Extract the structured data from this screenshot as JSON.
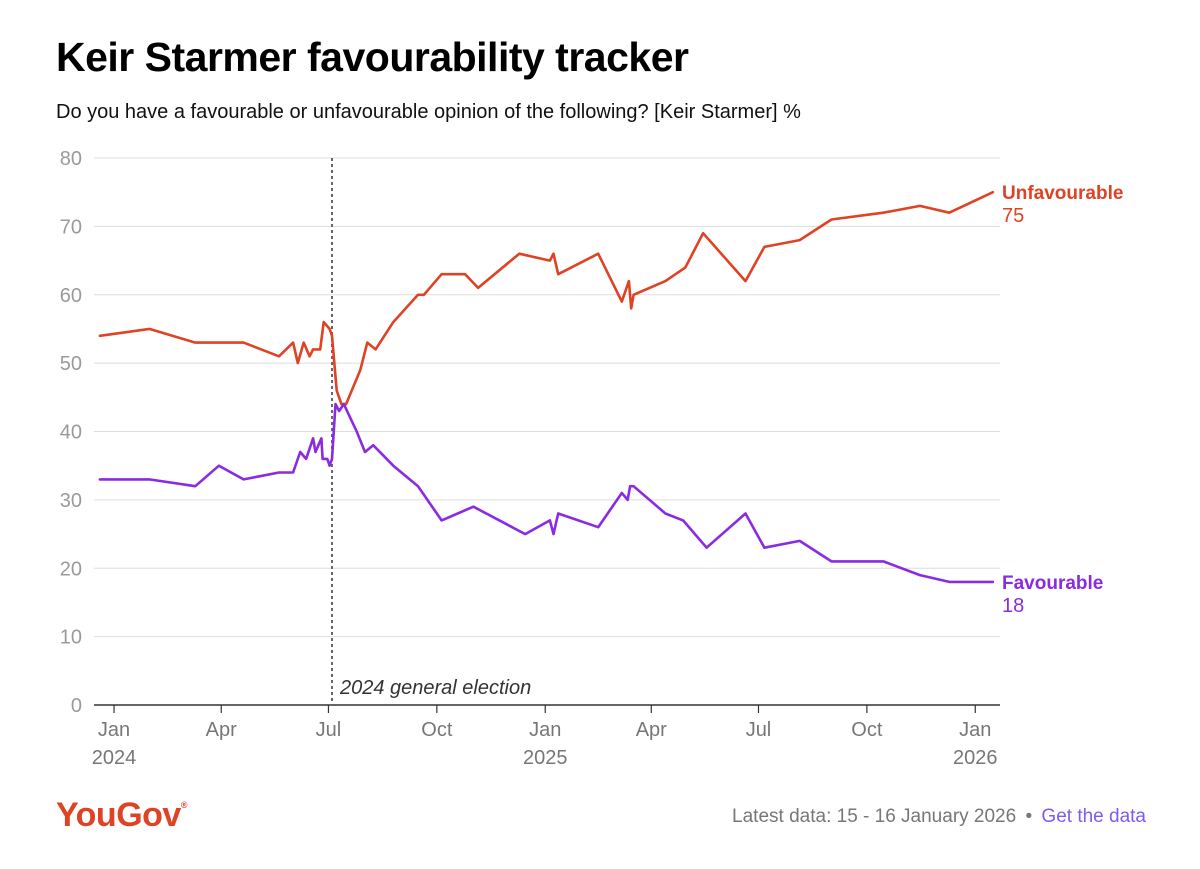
{
  "colors": {
    "unfavourable": "#dd4324",
    "favourable": "#8a2be2",
    "brand": "#dd4324",
    "link": "#7f5af0"
  },
  "logo": {
    "text": "YouGov",
    "mark": "®"
  },
  "footer": {
    "latest": "Latest data: 15 - 16 January 2026",
    "separator": "•",
    "link_label": "Get the data"
  },
  "chart_data": {
    "type": "line",
    "title": "Keir Starmer favourability tracker",
    "subtitle": "Do you have a favourable or unfavourable opinion of the following? [Keir Starmer] %",
    "xlabel": "",
    "ylabel": "",
    "ylim": [
      0,
      80
    ],
    "y_ticks": [
      0,
      10,
      20,
      30,
      40,
      50,
      60,
      70,
      80
    ],
    "xlim": [
      "2023-12-15",
      "2026-01-22"
    ],
    "x_ticks": [
      {
        "date": "2024-01-01",
        "label": "Jan",
        "year": "2024"
      },
      {
        "date": "2024-04-01",
        "label": "Apr",
        "year": ""
      },
      {
        "date": "2024-07-01",
        "label": "Jul",
        "year": ""
      },
      {
        "date": "2024-10-01",
        "label": "Oct",
        "year": ""
      },
      {
        "date": "2025-01-01",
        "label": "Jan",
        "year": "2025"
      },
      {
        "date": "2025-04-01",
        "label": "Apr",
        "year": ""
      },
      {
        "date": "2025-07-01",
        "label": "Jul",
        "year": ""
      },
      {
        "date": "2025-10-01",
        "label": "Oct",
        "year": ""
      },
      {
        "date": "2026-01-01",
        "label": "Jan",
        "year": "2026"
      }
    ],
    "annotation": {
      "date": "2024-07-04",
      "label": "2024 general election"
    },
    "grid": true,
    "series": [
      {
        "name": "Unfavourable",
        "color_key": "unfavourable",
        "end_value": "75",
        "points": [
          [
            "2023-12-20",
            54
          ],
          [
            "2024-01-31",
            55
          ],
          [
            "2024-03-10",
            53
          ],
          [
            "2024-04-20",
            53
          ],
          [
            "2024-05-20",
            51
          ],
          [
            "2024-06-01",
            53
          ],
          [
            "2024-06-05",
            50
          ],
          [
            "2024-06-10",
            53
          ],
          [
            "2024-06-15",
            51
          ],
          [
            "2024-06-18",
            52
          ],
          [
            "2024-06-24",
            52
          ],
          [
            "2024-06-27",
            56
          ],
          [
            "2024-07-02",
            55
          ],
          [
            "2024-07-04",
            54
          ],
          [
            "2024-07-08",
            46
          ],
          [
            "2024-07-12",
            44
          ],
          [
            "2024-07-16",
            44
          ],
          [
            "2024-07-28",
            49
          ],
          [
            "2024-08-03",
            53
          ],
          [
            "2024-08-10",
            52
          ],
          [
            "2024-08-25",
            56
          ],
          [
            "2024-09-15",
            60
          ],
          [
            "2024-09-20",
            60
          ],
          [
            "2024-10-05",
            63
          ],
          [
            "2024-10-25",
            63
          ],
          [
            "2024-11-05",
            61
          ],
          [
            "2024-12-10",
            66
          ],
          [
            "2025-01-05",
            65
          ],
          [
            "2025-01-08",
            66
          ],
          [
            "2025-01-12",
            63
          ],
          [
            "2025-02-15",
            66
          ],
          [
            "2025-03-07",
            59
          ],
          [
            "2025-03-13",
            62
          ],
          [
            "2025-03-15",
            58
          ],
          [
            "2025-03-17",
            60
          ],
          [
            "2025-04-13",
            62
          ],
          [
            "2025-04-30",
            64
          ],
          [
            "2025-05-15",
            69
          ],
          [
            "2025-06-20",
            62
          ],
          [
            "2025-07-06",
            67
          ],
          [
            "2025-08-05",
            68
          ],
          [
            "2025-09-01",
            71
          ],
          [
            "2025-10-15",
            72
          ],
          [
            "2025-11-15",
            73
          ],
          [
            "2025-12-10",
            72
          ],
          [
            "2026-01-16",
            75
          ]
        ]
      },
      {
        "name": "Favourable",
        "color_key": "favourable",
        "end_value": "18",
        "points": [
          [
            "2023-12-20",
            33
          ],
          [
            "2024-01-31",
            33
          ],
          [
            "2024-03-10",
            32
          ],
          [
            "2024-03-30",
            35
          ],
          [
            "2024-04-20",
            33
          ],
          [
            "2024-05-20",
            34
          ],
          [
            "2024-06-01",
            34
          ],
          [
            "2024-06-07",
            37
          ],
          [
            "2024-06-12",
            36
          ],
          [
            "2024-06-18",
            39
          ],
          [
            "2024-06-20",
            37
          ],
          [
            "2024-06-25",
            39
          ],
          [
            "2024-06-26",
            36
          ],
          [
            "2024-06-30",
            36
          ],
          [
            "2024-07-02",
            35
          ],
          [
            "2024-07-04",
            36
          ],
          [
            "2024-07-07",
            44
          ],
          [
            "2024-07-10",
            43
          ],
          [
            "2024-07-14",
            44
          ],
          [
            "2024-07-25",
            40
          ],
          [
            "2024-08-01",
            37
          ],
          [
            "2024-08-08",
            38
          ],
          [
            "2024-08-25",
            35
          ],
          [
            "2024-09-15",
            32
          ],
          [
            "2024-10-05",
            27
          ],
          [
            "2024-11-01",
            29
          ],
          [
            "2024-12-15",
            25
          ],
          [
            "2025-01-05",
            27
          ],
          [
            "2025-01-08",
            25
          ],
          [
            "2025-01-12",
            28
          ],
          [
            "2025-02-15",
            26
          ],
          [
            "2025-03-07",
            31
          ],
          [
            "2025-03-12",
            30
          ],
          [
            "2025-03-14",
            32
          ],
          [
            "2025-03-17",
            32
          ],
          [
            "2025-04-13",
            28
          ],
          [
            "2025-04-28",
            27
          ],
          [
            "2025-05-18",
            23
          ],
          [
            "2025-06-20",
            28
          ],
          [
            "2025-07-06",
            23
          ],
          [
            "2025-08-05",
            24
          ],
          [
            "2025-09-01",
            21
          ],
          [
            "2025-10-15",
            21
          ],
          [
            "2025-11-15",
            19
          ],
          [
            "2025-12-10",
            18
          ],
          [
            "2026-01-16",
            18
          ]
        ]
      }
    ]
  }
}
